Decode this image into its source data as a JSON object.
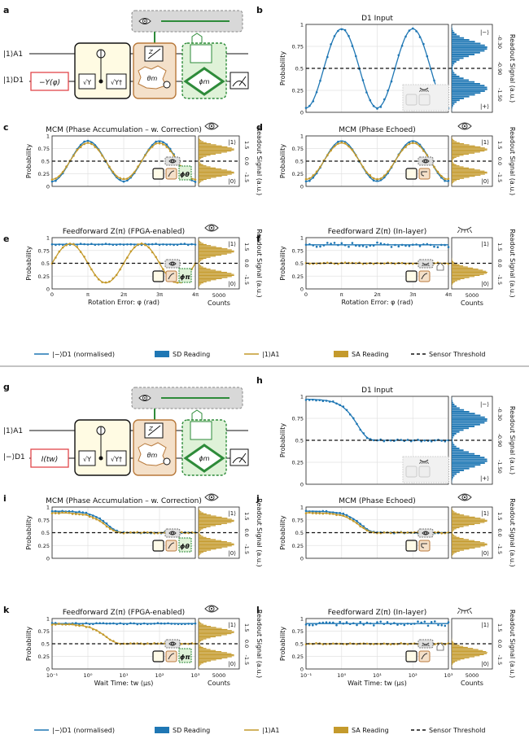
{
  "colors": {
    "blue": "#1f77b4",
    "gold": "#c49a2c",
    "dash": "#111111",
    "red": "#e2464a",
    "green": "#2e8b3a",
    "grid": "#e2e2e2"
  },
  "labels": {
    "phi_ticks": [
      "0",
      "π",
      "2π",
      "3π",
      "4π"
    ],
    "phi_xlabel": "Rotation Error: φ (rad)",
    "tw_xlabel": "Wait Time: tw (μs)",
    "tw_ticks": [
      "10⁻¹",
      "10⁰",
      "10¹",
      "10²",
      "10³"
    ],
    "counts": "Counts",
    "count_tick": "5000",
    "ylabel": "Probability",
    "readout": "Readout Signal (a.u.)",
    "ket1": "|1⟩",
    "ket0": "|0⟩",
    "ketm": "|−⟩",
    "ketp": "|+⟩",
    "yt": [
      "0",
      "0.25",
      "0.5",
      "0.75",
      "1"
    ],
    "rt_mcm": [
      "1.5",
      "0.0",
      "-1.5"
    ],
    "rt_d1": [
      "-0.30",
      "-0.90",
      "-1.50"
    ]
  },
  "circuit_top": {
    "letter": "a",
    "q1": "|1⟩A1",
    "q2": "|1⟩D1",
    "gate": "−Y(φ)",
    "sy": "√Y",
    "syd": "√Y†",
    "theta": "θm",
    "phi": "ϕm",
    "z": "Z"
  },
  "circuit_bot": {
    "letter": "g",
    "q1": "|1⟩A1",
    "q2": "|−⟩D1",
    "gate": "I(tw)",
    "sy": "√Y",
    "syd": "√Y†",
    "theta": "θm",
    "phi": "ϕm",
    "z": "Z"
  },
  "legend_top": {
    "items": [
      "|−⟩D1 (normalised)",
      "SD Reading",
      "|1⟩A1",
      "SA Reading",
      "Sensor Threshold"
    ]
  },
  "legend_bot": {
    "items": [
      "|−⟩D1 (normalised)",
      "SD Reading",
      "|1⟩A1",
      "SA Reading",
      "Sensor Threshold"
    ]
  },
  "chart_data": [
    {
      "id": "b",
      "type": "line",
      "title": "D1 Input",
      "xaxis": "phi",
      "xlim": [
        0,
        12.566
      ],
      "ylim": [
        0,
        1
      ],
      "series": [
        {
          "name": "|−⟩D1 (normalised)",
          "kind": "cos",
          "a": 0.45,
          "b": 0.5,
          "c": 0,
          "sign": -1
        }
      ],
      "hist": "d1",
      "corner": "b-inset"
    },
    {
      "id": "c",
      "type": "line",
      "title": "MCM (Phase Accumulation – w. Correction)",
      "xaxis": "phi",
      "xlim": [
        0,
        12.566
      ],
      "ylim": [
        0,
        1
      ],
      "series": [
        {
          "name": "|−⟩D1 (normalised)",
          "kind": "cos",
          "a": 0.4,
          "b": 0.5,
          "c": 0,
          "sign": -1
        },
        {
          "name": "|1⟩A1",
          "kind": "cos",
          "a": 0.36,
          "b": 0.5,
          "c": 0,
          "sign": -1
        }
      ],
      "hist": "gold",
      "corner": "mcm-phi"
    },
    {
      "id": "d",
      "type": "line",
      "title": "MCM (Phase Echoed)",
      "xaxis": "phi",
      "xlim": [
        0,
        12.566
      ],
      "ylim": [
        0,
        1
      ],
      "series": [
        {
          "name": "|−⟩D1 (normalised)",
          "kind": "cos",
          "a": 0.4,
          "b": 0.5,
          "c": 0,
          "sign": -1
        },
        {
          "name": "|1⟩A1",
          "kind": "cos",
          "a": 0.36,
          "b": 0.5,
          "c": 0,
          "sign": -1
        }
      ],
      "hist": "gold",
      "corner": "mcm-echo"
    },
    {
      "id": "e",
      "type": "line",
      "title": "Feedforward Z(π) (FPGA-enabled)",
      "xaxis": "phi",
      "xlim": [
        0,
        12.566
      ],
      "ylim": [
        0,
        1
      ],
      "series": [
        {
          "name": "|−⟩D1 (normalised)",
          "kind": "flat",
          "v": 0.87
        },
        {
          "name": "|1⟩A1",
          "kind": "cos",
          "a": 0.38,
          "b": 0.5,
          "c": 1.571,
          "sign": -1
        }
      ],
      "hist": "gold",
      "corner": "ff-fpga"
    },
    {
      "id": "f",
      "type": "line",
      "title": "Feedforward Z(π) (In-layer)",
      "xaxis": "phi",
      "xlim": [
        0,
        12.566
      ],
      "ylim": [
        0,
        1
      ],
      "series": [
        {
          "name": "|−⟩D1 (normalised)",
          "kind": "flat",
          "v": 0.86,
          "scatter": true
        },
        {
          "name": "|1⟩A1",
          "kind": "flat",
          "v": 0.5
        }
      ],
      "hist": "gold1",
      "corner": "ff-inlayer"
    },
    {
      "id": "h",
      "type": "line",
      "title": "D1 Input",
      "xaxis": "tw",
      "xlim": [
        -1,
        3
      ],
      "ylim": [
        0,
        1
      ],
      "series": [
        {
          "name": "|−⟩D1 (normalised)",
          "kind": "decay",
          "hi": 0.97,
          "lo": 0.5,
          "x0": 0.45
        }
      ],
      "hist": "d1",
      "corner": "b-inset"
    },
    {
      "id": "i",
      "type": "line",
      "title": "MCM (Phase Accumulation – w. Correction)",
      "xaxis": "tw",
      "xlim": [
        -1,
        3
      ],
      "ylim": [
        0,
        1
      ],
      "series": [
        {
          "name": "|−⟩D1 (normalised)",
          "kind": "decay",
          "hi": 0.92,
          "lo": 0.5,
          "x0": 0.55
        },
        {
          "name": "|1⟩A1",
          "kind": "decay",
          "hi": 0.89,
          "lo": 0.5,
          "x0": 0.5
        }
      ],
      "hist": "gold",
      "corner": "mcm-phi"
    },
    {
      "id": "j",
      "type": "line",
      "title": "MCM (Phase Echoed)",
      "xaxis": "tw",
      "xlim": [
        -1,
        3
      ],
      "ylim": [
        0,
        1
      ],
      "series": [
        {
          "name": "|−⟩D1 (normalised)",
          "kind": "decay",
          "hi": 0.92,
          "lo": 0.5,
          "x0": 0.55
        },
        {
          "name": "|1⟩A1",
          "kind": "decay",
          "hi": 0.89,
          "lo": 0.5,
          "x0": 0.5
        }
      ],
      "hist": "gold",
      "corner": "mcm-echo"
    },
    {
      "id": "k",
      "type": "line",
      "title": "Feedforward Z(π) (FPGA-enabled)",
      "xaxis": "tw",
      "xlim": [
        -1,
        3
      ],
      "ylim": [
        0,
        1
      ],
      "series": [
        {
          "name": "|−⟩D1 (normalised)",
          "kind": "flat",
          "v": 0.9
        },
        {
          "name": "|1⟩A1",
          "kind": "decay",
          "hi": 0.89,
          "lo": 0.5,
          "x0": 0.5
        }
      ],
      "hist": "gold",
      "corner": "ff-fpga"
    },
    {
      "id": "l",
      "type": "line",
      "title": "Feedforward Z(π) (In-layer)",
      "xaxis": "tw",
      "xlim": [
        -1,
        3
      ],
      "ylim": [
        0,
        1
      ],
      "series": [
        {
          "name": "|−⟩D1 (normalised)",
          "kind": "flat",
          "v": 0.9,
          "scatter": true
        },
        {
          "name": "|1⟩A1",
          "kind": "flat",
          "v": 0.5
        }
      ],
      "hist": "gold1",
      "corner": "ff-inlayer-tw"
    }
  ]
}
